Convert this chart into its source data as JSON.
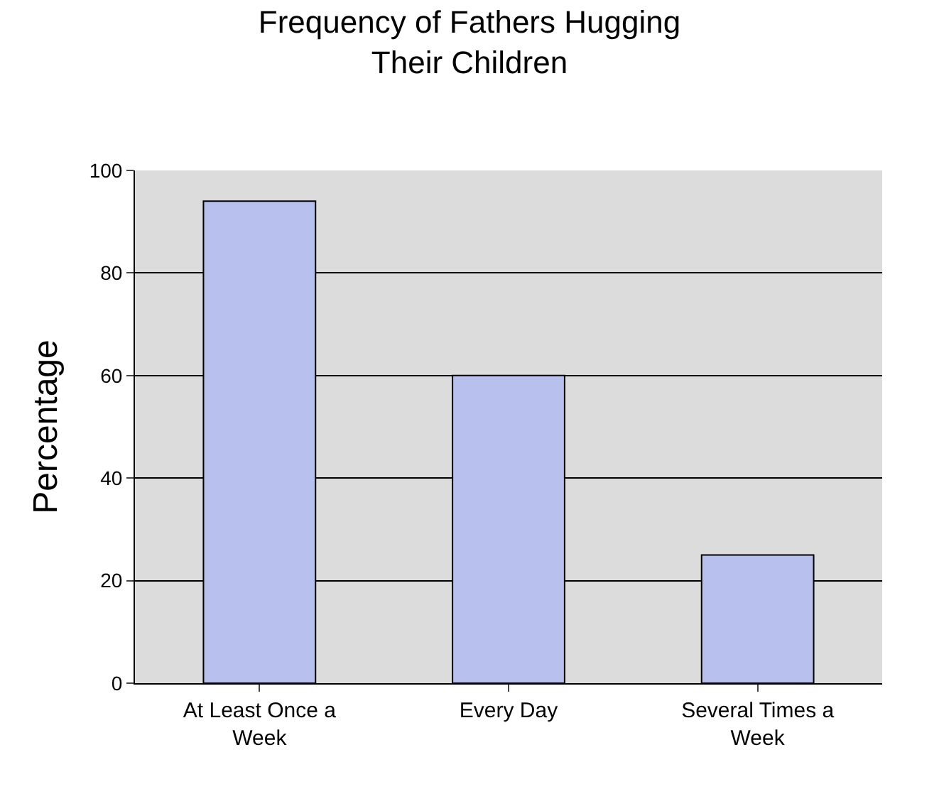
{
  "chart_data": {
    "type": "bar",
    "title": "Frequency of Fathers Hugging Their Children",
    "ylabel": "Percentage",
    "categories": [
      "At Least Once a Week",
      "Every Day",
      "Several Times a Week"
    ],
    "values": [
      94,
      60,
      25
    ],
    "color": "#b8c0ee",
    "ylim": [
      0,
      100
    ],
    "yticks": [
      0,
      20,
      40,
      60,
      80,
      100
    ],
    "grid": "y",
    "legend": false
  }
}
